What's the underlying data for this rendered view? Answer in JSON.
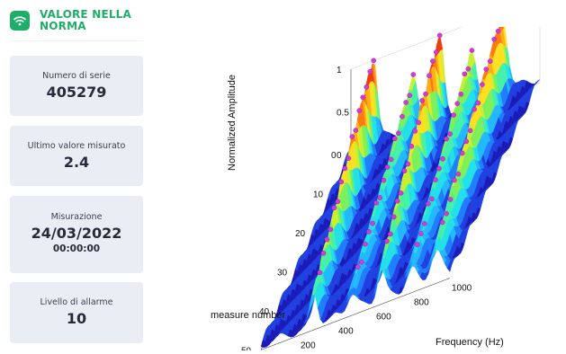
{
  "status": {
    "label": "VALORE NELLA NORMA",
    "icon": "wifi-icon",
    "color": "#1fae6a"
  },
  "cards": {
    "serial": {
      "label": "Numero di serie",
      "value": "405279"
    },
    "last_value": {
      "label": "Ultimo valore misurato",
      "value": "2.4"
    },
    "measurement": {
      "label": "Misurazione",
      "date": "24/03/2022",
      "time": "00:00:00"
    },
    "alarm": {
      "label": "Livello di allarme",
      "value": "10"
    }
  },
  "chart_data": {
    "type": "surface",
    "zlabel": "Normalized Amplitude",
    "xlabel": "Frequency (Hz)",
    "ylabel": "measure number",
    "z_ticks": [
      "0",
      "0.5",
      "1"
    ],
    "x_ticks": [
      "0",
      "200",
      "400",
      "600",
      "800",
      "1000"
    ],
    "y_ticks": [
      "0",
      "10",
      "20",
      "30",
      "40",
      "50"
    ],
    "zlim": [
      0,
      1
    ],
    "xlim": [
      0,
      1000
    ],
    "ylim": [
      0,
      50
    ],
    "colormap": "jet",
    "marker_color": "#d63ad6"
  }
}
